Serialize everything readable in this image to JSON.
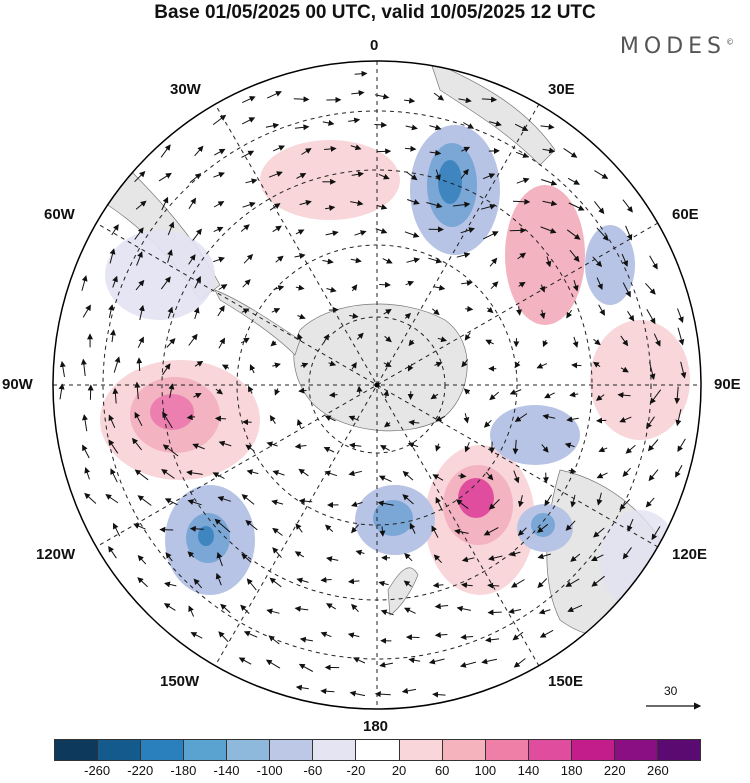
{
  "title": "Base 01/05/2025 00 UTC, valid 10/05/2025 12 UTC",
  "brand": "MODES",
  "brand_mark": "©",
  "longitude_labels": {
    "top": "0",
    "e30": "30E",
    "e60": "60E",
    "e90": "90E",
    "e120": "120E",
    "e150": "150E",
    "bottom": "180",
    "w150": "150W",
    "w120": "120W",
    "w90": "90W",
    "w60": "60W",
    "w30": "30W"
  },
  "reference_vector": {
    "label": "30"
  },
  "colorbar": {
    "ticks": [
      "-260",
      "-220",
      "-180",
      "-140",
      "-100",
      "-60",
      "-20",
      "20",
      "60",
      "100",
      "140",
      "180",
      "220",
      "260"
    ],
    "colors": [
      "#0d3a5c",
      "#145a8c",
      "#2a80bd",
      "#5aa2cf",
      "#8fb8dd",
      "#bcc8e6",
      "#e4e4f2",
      "#ffffff",
      "#f8d6d9",
      "#f5b3be",
      "#f07fa8",
      "#e04d9e",
      "#c21d8a",
      "#8a0f82",
      "#5a0a70"
    ]
  },
  "map": {
    "anomaly_colors": {
      "blue_dark": "#3f86c1",
      "blue_mid": "#7aa7d6",
      "blue_light": "#b8c4e5",
      "lavender": "#e2e2f2",
      "pink_light": "#f8d6d9",
      "pink_mid": "#f3b3c0",
      "magenta": "#ec7fb0",
      "magenta_dark": "#e04d9e"
    },
    "land_color": "#e6e6e6"
  }
}
